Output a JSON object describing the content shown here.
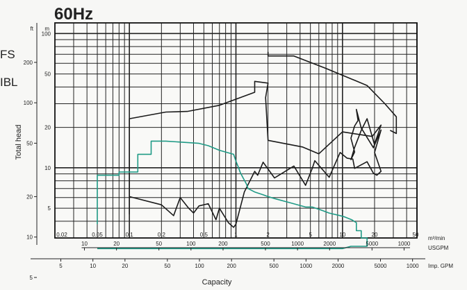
{
  "page": {
    "title": "60Hz",
    "side_labels": [
      "FS",
      "IBL"
    ]
  },
  "chart_data": {
    "type": "line",
    "title": "60Hz",
    "xlabel": "Capacity",
    "ylabel": "Total head",
    "x_scale": "log",
    "y_scale": "log",
    "xlim": [
      0.02,
      50
    ],
    "ylim_m": [
      3,
      120
    ],
    "x_axes": [
      {
        "unit": "m³/min",
        "ticks": [
          "0.02",
          "0.05",
          "0.1",
          "0.2",
          "0.5",
          "1",
          "2",
          "5",
          "10",
          "20",
          "50"
        ]
      },
      {
        "unit": "USGPM",
        "ticks": [
          "10",
          "20",
          "50",
          "100",
          "200",
          "500",
          "1000",
          "2000",
          "5000",
          "1000"
        ]
      },
      {
        "unit": "Imp. GPM",
        "ticks": [
          "5",
          "10",
          "20",
          "50",
          "100",
          "200",
          "500",
          "1000",
          "2000",
          "5000",
          "1000"
        ]
      }
    ],
    "y_axes": [
      {
        "unit": "m",
        "ticks": [
          "100",
          "50",
          "20",
          "10",
          "5"
        ]
      },
      {
        "unit": "ft",
        "ticks": [
          "200",
          "100",
          "50",
          "20",
          "10",
          "5"
        ]
      }
    ],
    "grid": true,
    "series": [
      {
        "color": "#1a1a1a",
        "x": [
          0.1,
          0.1,
          0.2,
          0.26,
          0.3,
          0.36,
          0.4,
          0.45,
          0.55,
          0.65,
          0.7,
          0.85,
          0.95,
          1.0,
          1.2,
          1.5,
          1.6,
          1.8,
          2.3,
          3.5,
          4.5,
          5.2,
          5.5,
          7.5,
          9.5,
          11,
          12.5,
          13,
          17,
          19.5,
          21,
          23,
          20,
          23,
          20,
          17,
          15,
          13,
          12,
          13,
          12,
          13,
          14,
          13.5,
          15,
          19.5,
          23,
          19,
          10,
          6,
          4.2,
          2,
          1.9,
          2,
          1.5,
          1.5,
          0.7,
          0.35,
          0.22,
          0.1,
          0.1
        ],
        "y": [
          4.5,
          6.1,
          5.3,
          4.4,
          6.0,
          5.0,
          4.6,
          5.2,
          5.4,
          4.1,
          5.0,
          3.9,
          3.6,
          3.8,
          6.6,
          9.4,
          8.8,
          11.0,
          8.4,
          10.3,
          7.4,
          9.9,
          11.3,
          8.5,
          13.0,
          11.8,
          11.6,
          9.9,
          11.1,
          9.1,
          8.8,
          9.4,
          13.0,
          19.1,
          14.8,
          23.2,
          19.0,
          14.2,
          11.5,
          13.1,
          16.6,
          20.5,
          22.5,
          27.2,
          19.8,
          14.1,
          20.8,
          17.1,
          18.5,
          12.7,
          14.3,
          16.0,
          33.3,
          42.7,
          44.0,
          36.5,
          29.2,
          26.3,
          26.0,
          23.2,
          4.5
        ]
      },
      {
        "color": "#1a1a1a",
        "x": [
          2,
          2,
          3.5,
          7,
          17,
          25,
          32,
          32,
          28
        ],
        "y": [
          73,
          68,
          68,
          55,
          41,
          30,
          24,
          18,
          19
        ]
      },
      {
        "color": "#1f9a86",
        "x": [
          0.05,
          0.05,
          0.08,
          0.08,
          0.12,
          0.12,
          0.16,
          0.16,
          0.22,
          0.45,
          0.55,
          0.6,
          0.7,
          0.95,
          1.0,
          1.05,
          1.1,
          1.15,
          1.25,
          1.3,
          1.5,
          1.8,
          2.0,
          2.3,
          3.2,
          4.5,
          5.2,
          6.5,
          7.5,
          9.5,
          10.5,
          12.2,
          13.5,
          13.5,
          15,
          15,
          17,
          17,
          12,
          10,
          9,
          6,
          3.5,
          2,
          1.5,
          0.7,
          0.6,
          0.55,
          0.42,
          0.28,
          0.2,
          0.05
        ],
        "y": [
          3.8,
          8.8,
          8.8,
          9.3,
          9.3,
          12.6,
          12.6,
          15.8,
          15.8,
          15.2,
          14.6,
          14.2,
          13.5,
          12.6,
          11.2,
          10.2,
          9.2,
          8.6,
          7.6,
          7.0,
          6.6,
          6.3,
          6.1,
          5.9,
          5.5,
          5.1,
          5.1,
          4.8,
          4.6,
          4.4,
          4.3,
          4.1,
          3.9,
          3.4,
          3.4,
          3.0,
          3.0,
          2.6,
          2.6,
          2.5,
          2.5,
          2.5,
          2.5,
          2.5,
          2.5,
          2.5,
          2.5,
          2.5,
          2.5,
          2.5,
          2.5,
          2.5
        ]
      }
    ]
  }
}
